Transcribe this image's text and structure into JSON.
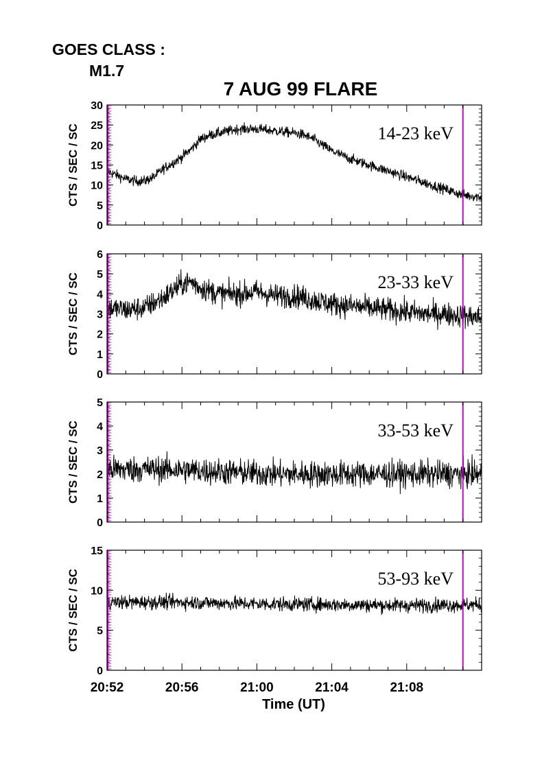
{
  "header": {
    "goes_label": "GOES CLASS :",
    "goes_class": "M1.7",
    "title": "7 AUG 99 FLARE"
  },
  "colors": {
    "trace": "#000000",
    "marker": "#cc00cc",
    "axis": "#000000"
  },
  "chart_data": [
    {
      "type": "line",
      "band_label": "14-23 keV",
      "ylabel": "CTS / SEC / SC",
      "ylim": [
        0,
        30
      ],
      "yticks": [
        "0",
        "5",
        "10",
        "15",
        "20",
        "25",
        "30"
      ],
      "xlim_minutes": [
        52,
        72
      ],
      "noise": 0.65,
      "x": [
        52,
        52.5,
        53,
        53.5,
        54,
        54.5,
        55,
        55.5,
        56,
        56.5,
        57,
        57.5,
        58,
        59,
        60,
        61,
        62,
        62.5,
        63,
        63.5,
        64,
        65,
        66,
        67,
        68,
        69,
        70,
        71,
        72
      ],
      "y": [
        13.5,
        12.5,
        11.5,
        11,
        11,
        12,
        14,
        15.5,
        17,
        19,
        21.5,
        22.5,
        23,
        24,
        24,
        23.5,
        23,
        22.5,
        21.5,
        20,
        18.5,
        16.5,
        15,
        13.5,
        12,
        10.5,
        9,
        7.5,
        7
      ]
    },
    {
      "type": "line",
      "band_label": "23-33 keV",
      "ylabel": "CTS / SEC / SC",
      "ylim": [
        0,
        6
      ],
      "yticks": [
        "0",
        "1",
        "2",
        "3",
        "4",
        "5",
        "6"
      ],
      "xlim_minutes": [
        52,
        72
      ],
      "noise": 0.3,
      "x": [
        52,
        53,
        54,
        55,
        56,
        56.5,
        57,
        58,
        59,
        60,
        61,
        62,
        63,
        64,
        65,
        66,
        67,
        68,
        69,
        70,
        71,
        72
      ],
      "y": [
        3.3,
        3.2,
        3.3,
        3.8,
        4.5,
        4.6,
        4.3,
        4.0,
        4.0,
        4.1,
        3.9,
        3.9,
        3.7,
        3.5,
        3.4,
        3.3,
        3.2,
        3.1,
        3.0,
        3.0,
        2.9,
        2.8
      ]
    },
    {
      "type": "line",
      "band_label": "33-53 keV",
      "ylabel": "CTS / SEC / SC",
      "ylim": [
        0,
        5
      ],
      "yticks": [
        "0",
        "1",
        "2",
        "3",
        "4",
        "5"
      ],
      "xlim_minutes": [
        52,
        72
      ],
      "noise": 0.28,
      "x": [
        52,
        55,
        58,
        61,
        64,
        67,
        70,
        72
      ],
      "y": [
        2.2,
        2.2,
        2.1,
        2.0,
        2.0,
        2.0,
        2.0,
        2.0
      ]
    },
    {
      "type": "line",
      "band_label": "53-93 keV",
      "ylabel": "CTS / SEC / SC",
      "ylim": [
        0,
        15
      ],
      "yticks": [
        "0",
        "5",
        "10",
        "15"
      ],
      "xlim_minutes": [
        52,
        72
      ],
      "noise": 0.45,
      "x": [
        52,
        56,
        60,
        64,
        68,
        72
      ],
      "y": [
        8.5,
        8.5,
        8.3,
        8.2,
        8.1,
        8.2
      ],
      "x_ticks": [
        "20:52",
        "20:56",
        "21:00",
        "21:04",
        "21:08"
      ],
      "x_tick_minutes": [
        52,
        56,
        60,
        64,
        68
      ],
      "xlabel": "Time (UT)"
    }
  ],
  "markers_minutes": [
    52.05,
    71.0
  ]
}
